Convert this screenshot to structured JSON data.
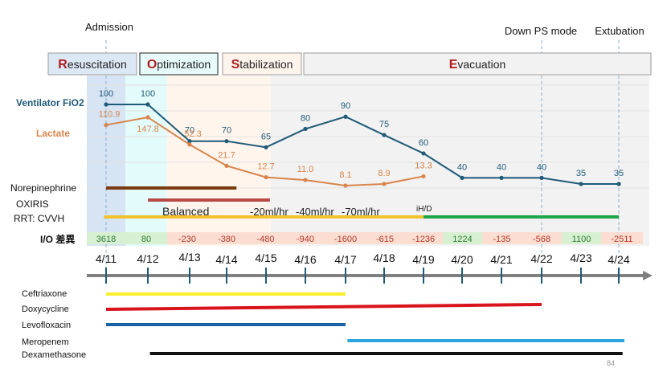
{
  "chart_data": {
    "type": "line",
    "title": "",
    "dates": [
      "4/11",
      "4/12",
      "4/13",
      "4/14",
      "4/15",
      "4/16",
      "4/17",
      "4/18",
      "4/19",
      "4/20",
      "4/21",
      "4/22",
      "4/23",
      "4/24"
    ],
    "events": [
      {
        "label": "Admission",
        "date": "4/11"
      },
      {
        "label": "Down PS mode",
        "date": "4/22"
      },
      {
        "label": "Extubation",
        "date": "4/24"
      }
    ],
    "phases": [
      {
        "initial": "R",
        "rest": "esuscitation",
        "start": "4/11",
        "end": "4/12",
        "fill": "#dde8f5",
        "band": "#d6e4f4"
      },
      {
        "initial": "O",
        "rest": "ptimization",
        "start": "4/12",
        "end": "4/13",
        "fill": "#e6fbfa",
        "band": "#e3fbfa"
      },
      {
        "initial": "S",
        "rest": "tabilization",
        "start": "4/13",
        "end": "4/15",
        "fill": "#fff4ec",
        "band": "#fff5ed"
      },
      {
        "initial": "E",
        "rest": "vacuation",
        "start": "4/15",
        "end": "4/24",
        "fill": "#f2f2f2",
        "band": "#f2f2f2"
      }
    ],
    "series": [
      {
        "name": "Ventilator FiO2",
        "color": "#1f5a78",
        "values": [
          100,
          100,
          70,
          70,
          65,
          80,
          90,
          75,
          60,
          40,
          40,
          40,
          35,
          35
        ],
        "labels": [
          "100",
          "100",
          "70",
          "70",
          "65",
          "80",
          "90",
          "75",
          "60",
          "40",
          "40",
          "40",
          "35",
          "35"
        ]
      },
      {
        "name": "Lactate",
        "color": "#d9844a",
        "values": [
          110.9,
          147.8,
          52.3,
          21.7,
          12.7,
          11.0,
          8.1,
          8.9,
          13.3,
          null,
          null,
          null,
          null,
          null
        ],
        "labels": [
          "110.9",
          "147.8",
          "52.3",
          "21.7",
          "12.7",
          "11.0",
          "8.1",
          "8.9",
          "13.3",
          "",
          "",
          "",
          "",
          ""
        ]
      }
    ],
    "therapy_bars": [
      {
        "name": "Norepinephrine",
        "start": "4/11",
        "end": "4/14+0.25",
        "start_idx": 0,
        "end_idx": 3.25,
        "color": "#7a3a12"
      },
      {
        "name": "OXIRIS",
        "start_idx": 1,
        "end_idx": 4.1,
        "color": "#b84a45"
      },
      {
        "name": "RRT: CVVH",
        "segments": [
          {
            "start_idx": -0.05,
            "end_idx": 8,
            "color": "#f2c12e"
          },
          {
            "start_idx": 8,
            "end_idx": 13,
            "color": "#1fa64a"
          }
        ]
      }
    ],
    "rrt_annotations": [
      "Balanced",
      "-20ml/hr",
      "-40ml/hr",
      "-70ml/hr",
      "iH/D"
    ],
    "io_balance": {
      "label": "I/O 差異",
      "values": [
        "3618",
        "80",
        "-230",
        "-380",
        "-480",
        "-940",
        "-1600",
        "-615",
        "-1236",
        "1224",
        "-135",
        "-568",
        "1100",
        "-2511"
      ]
    },
    "antibiotics": [
      {
        "name": "Ceftriaxone",
        "start_idx": 0,
        "end_idx": 6,
        "color": "#f7ee30"
      },
      {
        "name": "Doxycycline",
        "start_idx": 0,
        "end_idx": 11,
        "color": "#d8141d"
      },
      {
        "name": "Levofloxacin",
        "start_idx": 0,
        "end_idx": 6,
        "color": "#1a64a6"
      },
      {
        "name": "Meropenem",
        "start_idx": 6.05,
        "end_idx": 13.15,
        "color": "#2aa6dd"
      },
      {
        "name": "Dexamethasone",
        "start_idx": 1.05,
        "end_idx": 13.1,
        "color": "#111111"
      }
    ],
    "grid": true,
    "xlabel": "",
    "ylabel": ""
  },
  "row_labels": {
    "fio2": "Ventilator FiO2",
    "lactate": "Lactate",
    "norepinephrine": "Norepinephrine",
    "oxiris": "OXIRIS",
    "rrt": "RRT: CVVH",
    "io": "I/O 差異"
  },
  "page_number": "84"
}
